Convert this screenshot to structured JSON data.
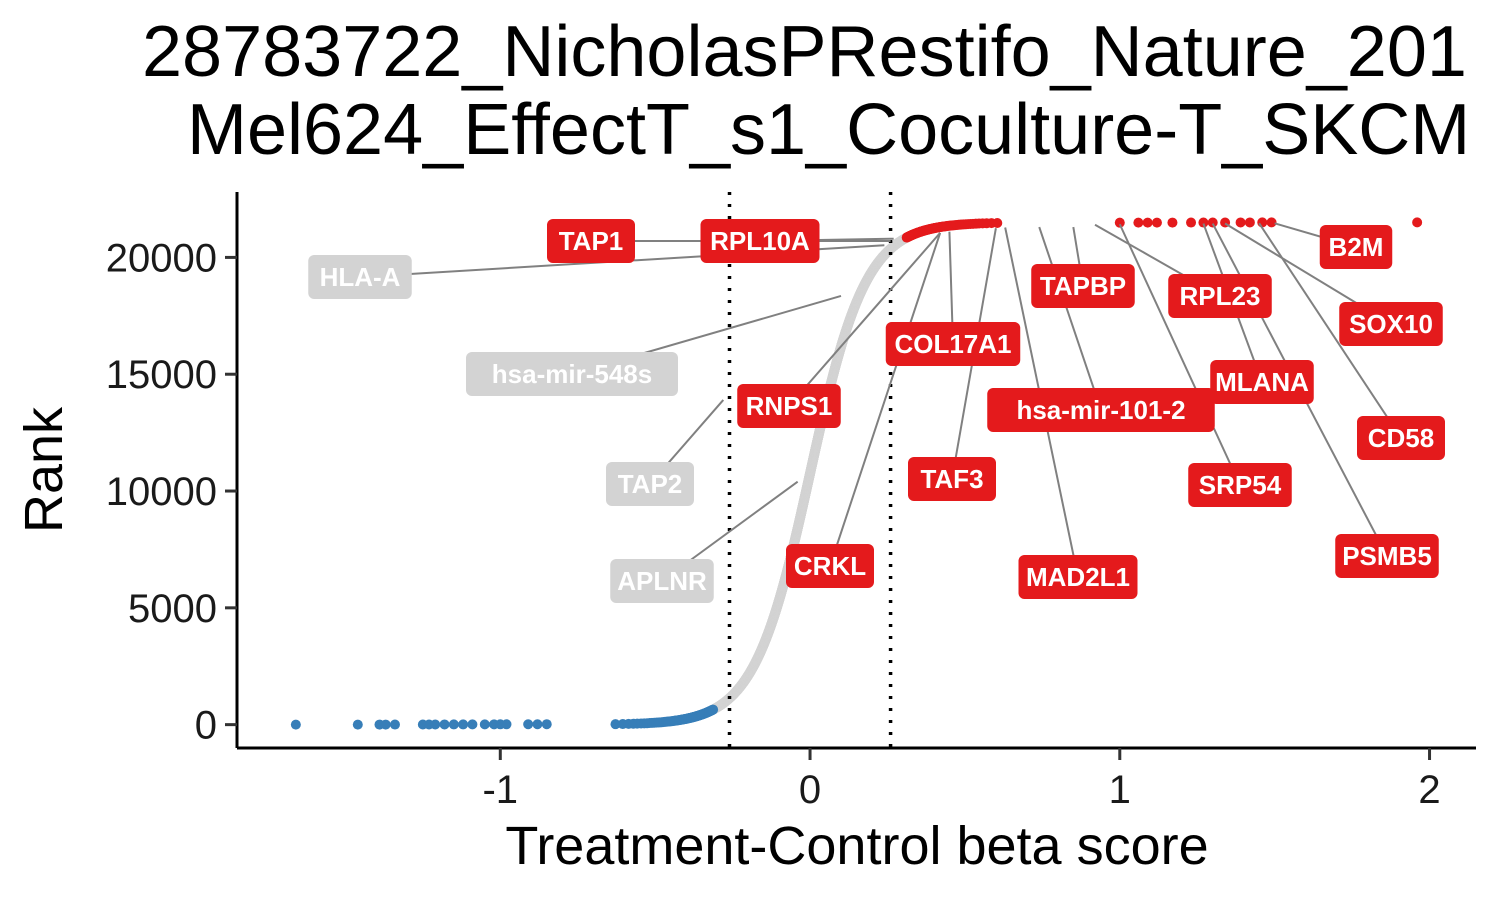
{
  "chart_data": {
    "type": "scatter",
    "title_lines": [
      "28783722_NicholasPRestifo_Nature_201",
      "Mel624_EffectT_s1_Coculture-T_SKCM"
    ],
    "xlabel": "Treatment-Control beta score",
    "ylabel": "Rank",
    "xlim": [
      -1.85,
      2.15
    ],
    "ylim": [
      -1000,
      22800
    ],
    "x_ticks": [
      -1,
      0,
      1,
      2
    ],
    "x_tick_labels": [
      "-1",
      "0",
      "1",
      "2"
    ],
    "y_ticks": [
      0,
      5000,
      10000,
      15000,
      20000
    ],
    "y_tick_labels": [
      "0",
      "5000",
      "10000",
      "15000",
      "20000"
    ],
    "cutoffs": [
      -0.26,
      0.26
    ],
    "grid": false,
    "legend": "none",
    "colors": {
      "down": "#377eb8",
      "neutral": "#d3d3d3",
      "up": "#e41a1c",
      "leader": "#808080",
      "label_text": "#ffffff"
    },
    "total_genes": 21500,
    "down_points": {
      "x": [
        -1.66,
        -1.46,
        -1.39,
        -1.37,
        -1.34,
        -1.25,
        -1.23,
        -1.21,
        -1.18,
        -1.15,
        -1.12,
        -1.09,
        -1.05,
        -1.02,
        -1.0,
        -0.98,
        -0.91,
        -0.88,
        -0.85
      ],
      "y": [
        0,
        1,
        2,
        3,
        4,
        5,
        6,
        7,
        8,
        9,
        10,
        11,
        12,
        13,
        14,
        15,
        16,
        17,
        18
      ]
    },
    "up_points": {
      "x": [
        1.96,
        1.49,
        1.46,
        1.42,
        1.39,
        1.34,
        1.3,
        1.27,
        1.23,
        1.17,
        1.12,
        1.09,
        1.06,
        1.0
      ],
      "y": [
        21500,
        21499,
        21498,
        21497,
        21496,
        21495,
        21494,
        21493,
        21492,
        21491,
        21490,
        21489,
        21488,
        21487
      ]
    },
    "curve": {
      "center": 0,
      "scale": 0.09,
      "n_down": 650,
      "n_up": 650
    },
    "labels": [
      {
        "gene": "TAP1",
        "x": 0.26,
        "y": 20700,
        "group": "up"
      },
      {
        "gene": "RPL10A",
        "x": 0.27,
        "y": 20800,
        "group": "up"
      },
      {
        "gene": "HLA-A",
        "x": 0.24,
        "y": 20520,
        "group": "neutral"
      },
      {
        "gene": "hsa-mir-548s",
        "x": 0.1,
        "y": 18350,
        "group": "neutral"
      },
      {
        "gene": "RNPS1",
        "x": 0.42,
        "y": 21050,
        "group": "up"
      },
      {
        "gene": "TAP2",
        "x": -0.28,
        "y": 13900,
        "group": "neutral"
      },
      {
        "gene": "APLNR",
        "x": -0.04,
        "y": 10400,
        "group": "neutral"
      },
      {
        "gene": "CRKL",
        "x": 0.42,
        "y": 21050,
        "group": "up"
      },
      {
        "gene": "COL17A1",
        "x": 0.45,
        "y": 21100,
        "group": "up"
      },
      {
        "gene": "TAF3",
        "x": 0.6,
        "y": 21250,
        "group": "up"
      },
      {
        "gene": "TAPBP",
        "x": 0.85,
        "y": 21300,
        "group": "up"
      },
      {
        "gene": "hsa-mir-101-2",
        "x": 0.74,
        "y": 21300,
        "group": "up"
      },
      {
        "gene": "MAD2L1",
        "x": 0.63,
        "y": 21280,
        "group": "up"
      },
      {
        "gene": "RPL23",
        "x": 0.92,
        "y": 21400,
        "group": "up"
      },
      {
        "gene": "MLANA",
        "x": 1.27,
        "y": 21450,
        "group": "up"
      },
      {
        "gene": "SRP54",
        "x": 1.0,
        "y": 21420,
        "group": "up"
      },
      {
        "gene": "B2M",
        "x": 1.5,
        "y": 21460,
        "group": "up"
      },
      {
        "gene": "SOX10",
        "x": 1.34,
        "y": 21450,
        "group": "up"
      },
      {
        "gene": "CD58",
        "x": 1.45,
        "y": 21460,
        "group": "up"
      },
      {
        "gene": "PSMB5",
        "x": 1.3,
        "y": 21450,
        "group": "up"
      }
    ]
  }
}
